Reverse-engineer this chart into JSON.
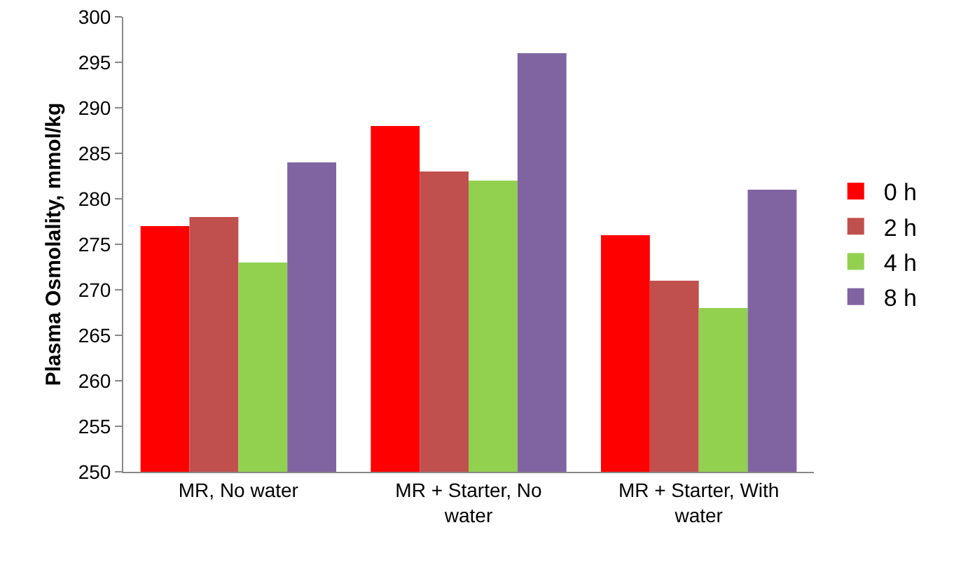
{
  "chart_data": {
    "type": "bar",
    "ylabel": "Plasma Osmolality, mmol/kg",
    "categories": [
      "MR, No water",
      "MR + Starter, No water",
      "MR + Starter, With water"
    ],
    "series": [
      {
        "name": "0 h",
        "color": "#ff0000",
        "values": [
          277,
          288,
          276
        ]
      },
      {
        "name": "2 h",
        "color": "#c0504d",
        "values": [
          278,
          283,
          271
        ]
      },
      {
        "name": "4 h",
        "color": "#92d050",
        "values": [
          273,
          282,
          268
        ]
      },
      {
        "name": "8 h",
        "color": "#8064a2",
        "values": [
          284,
          296,
          281
        ]
      }
    ],
    "ylim": [
      250,
      300
    ],
    "yticks": [
      250,
      255,
      260,
      265,
      270,
      275,
      280,
      285,
      290,
      295,
      300
    ],
    "grid": false,
    "legend": "right"
  }
}
